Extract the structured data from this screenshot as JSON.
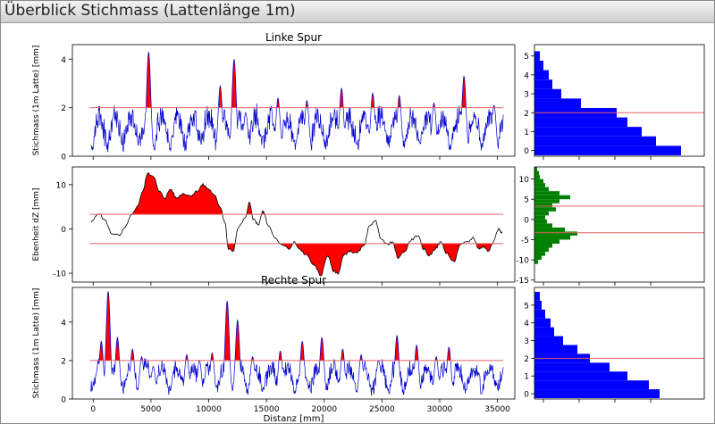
{
  "window": {
    "title": "Überblick Stichmass (Lattenlänge 1m)"
  },
  "chart_data": [
    {
      "id": "left",
      "type": "line",
      "title": "Linke Spur",
      "xlabel": "",
      "ylabel": "Stichmass (1m Latte) [mm]",
      "xlim": [
        -1800,
        36500
      ],
      "ylim": [
        0,
        4.6
      ],
      "xticks": [
        0,
        5000,
        10000,
        15000,
        20000,
        25000,
        30000,
        35000
      ],
      "yticks": [
        0,
        2,
        4
      ],
      "threshold": 2,
      "line_color": "#0000cc",
      "fill_color": "#ff0000",
      "threshold_color": "#e06060",
      "peaks": [
        [
          4800,
          4.3
        ],
        [
          6100,
          1.3
        ],
        [
          11000,
          2.9
        ],
        [
          12200,
          4.0
        ],
        [
          13200,
          1.8
        ],
        [
          16000,
          2.4
        ],
        [
          18500,
          2.3
        ],
        [
          21500,
          2.8
        ],
        [
          24200,
          2.6
        ],
        [
          26500,
          2.5
        ],
        [
          29500,
          2.2
        ],
        [
          32100,
          3.3
        ],
        [
          34700,
          2.1
        ]
      ],
      "y_hist": {
        "bins": [
          5,
          4.5,
          4,
          3.5,
          3,
          2.5,
          2,
          1.5,
          1,
          0.5,
          0
        ],
        "counts": [
          0.3,
          0.5,
          0.8,
          1.0,
          1.5,
          2.6,
          4.6,
          5.2,
          6.0,
          6.8,
          8.2
        ],
        "yticks": [
          0,
          1,
          2,
          3,
          4,
          5
        ],
        "ylim": [
          -0.3,
          5.6
        ],
        "threshold": 2,
        "color": "#0000ff"
      }
    },
    {
      "id": "mid",
      "type": "line",
      "title": "",
      "xlabel": "",
      "ylabel": "Ebenheit dZ [mm]",
      "xlim": [
        -1800,
        36500
      ],
      "ylim": [
        -12,
        14
      ],
      "xticks": [
        0,
        5000,
        10000,
        15000,
        20000,
        25000,
        30000,
        35000
      ],
      "yticks": [
        -10,
        0,
        10
      ],
      "threshold_upper": 3.3,
      "threshold_lower": -3.3,
      "line_color": "#000000",
      "fill_color": "#ff0000",
      "threshold_color": "#e06060",
      "profile": [
        [
          -200,
          1.5
        ],
        [
          500,
          3.5
        ],
        [
          1000,
          2.0
        ],
        [
          1600,
          -1.0
        ],
        [
          2300,
          -1.5
        ],
        [
          2800,
          0.5
        ],
        [
          3300,
          3.0
        ],
        [
          3800,
          5.0
        ],
        [
          4300,
          8.5
        ],
        [
          4700,
          12.5
        ],
        [
          5200,
          12.0
        ],
        [
          5700,
          8.5
        ],
        [
          6200,
          7.0
        ],
        [
          6700,
          9.0
        ],
        [
          7200,
          7.0
        ],
        [
          7800,
          8.0
        ],
        [
          8400,
          7.5
        ],
        [
          9000,
          8.5
        ],
        [
          9500,
          10.0
        ],
        [
          10000,
          9.0
        ],
        [
          10500,
          7.5
        ],
        [
          11000,
          5.0
        ],
        [
          11400,
          1.5
        ],
        [
          11700,
          -4.5
        ],
        [
          12100,
          -5.0
        ],
        [
          12600,
          0.5
        ],
        [
          13200,
          2.5
        ],
        [
          13500,
          6.0
        ],
        [
          13900,
          2.0
        ],
        [
          14300,
          1.0
        ],
        [
          14700,
          4.0
        ],
        [
          15200,
          0.5
        ],
        [
          15700,
          -2.0
        ],
        [
          16300,
          -3.5
        ],
        [
          17000,
          -4.5
        ],
        [
          17400,
          -3.0
        ],
        [
          17800,
          -4.5
        ],
        [
          18500,
          -6.0
        ],
        [
          19200,
          -8.5
        ],
        [
          19700,
          -10.5
        ],
        [
          20300,
          -6.0
        ],
        [
          20800,
          -9.5
        ],
        [
          21200,
          -10.0
        ],
        [
          21700,
          -6.0
        ],
        [
          22200,
          -5.0
        ],
        [
          22800,
          -5.5
        ],
        [
          23400,
          -4.0
        ],
        [
          23900,
          0.5
        ],
        [
          24400,
          2.0
        ],
        [
          24900,
          -2.0
        ],
        [
          25400,
          -3.5
        ],
        [
          25900,
          -3.0
        ],
        [
          26400,
          -6.5
        ],
        [
          27000,
          -5.0
        ],
        [
          27500,
          -2.5
        ],
        [
          28100,
          -1.5
        ],
        [
          28600,
          -4.5
        ],
        [
          29100,
          -6.0
        ],
        [
          29600,
          -4.5
        ],
        [
          30100,
          -3.0
        ],
        [
          30600,
          -5.5
        ],
        [
          31200,
          -7.5
        ],
        [
          31800,
          -3.5
        ],
        [
          32400,
          -3.0
        ],
        [
          32900,
          -2.0
        ],
        [
          33400,
          -4.5
        ],
        [
          33800,
          -4.0
        ],
        [
          34200,
          -5.0
        ],
        [
          34600,
          -3.0
        ],
        [
          35100,
          0.0
        ],
        [
          35400,
          -1.0
        ]
      ],
      "y_hist": {
        "bins": [
          12.5,
          11.5,
          10.5,
          9.5,
          8.5,
          7.5,
          6.5,
          5.5,
          4.5,
          3.5,
          2.5,
          1.5,
          0.5,
          -0.5,
          -1.5,
          -2.5,
          -3.5,
          -4.5,
          -5.5,
          -6.5,
          -7.5,
          -8.5,
          -9.5,
          -10.5
        ],
        "counts": [
          0.15,
          0.25,
          0.3,
          0.5,
          0.6,
          0.8,
          1.4,
          2.0,
          1.4,
          1.0,
          1.2,
          0.8,
          0.6,
          0.7,
          1.0,
          1.7,
          2.4,
          2.0,
          1.4,
          1.0,
          0.8,
          0.6,
          0.4,
          0.2
        ],
        "yticks": [
          -15,
          -10,
          -5,
          0,
          5,
          10
        ],
        "ylim": [
          -15.5,
          13
        ],
        "threshold_upper": 3.3,
        "threshold_lower": -3.3,
        "color": "#008000"
      }
    },
    {
      "id": "right",
      "type": "line",
      "title": "Rechte Spur",
      "xlabel": "Distanz [mm]",
      "ylabel": "Stichmass (1m Latte) [mm]",
      "xlim": [
        -1800,
        36500
      ],
      "ylim": [
        0,
        5.8
      ],
      "xticks": [
        0,
        5000,
        10000,
        15000,
        20000,
        25000,
        30000,
        35000
      ],
      "yticks": [
        0,
        2,
        4
      ],
      "threshold": 2,
      "line_color": "#0000cc",
      "fill_color": "#ff0000",
      "threshold_color": "#e06060",
      "peaks": [
        [
          700,
          3.0
        ],
        [
          1300,
          5.6
        ],
        [
          2100,
          3.2
        ],
        [
          3400,
          2.6
        ],
        [
          4200,
          2.2
        ],
        [
          5200,
          1.7
        ],
        [
          8100,
          2.3
        ],
        [
          9200,
          2.0
        ],
        [
          10300,
          2.4
        ],
        [
          11600,
          5.1
        ],
        [
          12500,
          4.1
        ],
        [
          13800,
          2.2
        ],
        [
          16200,
          2.5
        ],
        [
          18100,
          3.0
        ],
        [
          19800,
          3.2
        ],
        [
          21600,
          2.6
        ],
        [
          23200,
          2.3
        ],
        [
          24700,
          2.0
        ],
        [
          26300,
          3.3
        ],
        [
          28000,
          2.8
        ],
        [
          29700,
          2.2
        ],
        [
          30800,
          2.7
        ]
      ],
      "y_hist": {
        "bins": [
          5.5,
          5,
          4.5,
          4,
          3.5,
          3,
          2.5,
          2,
          1.5,
          1,
          0.5,
          0
        ],
        "counts": [
          0.3,
          0.4,
          0.6,
          0.9,
          1.1,
          1.6,
          2.4,
          3.1,
          4.2,
          5.2,
          6.4,
          7.0
        ],
        "yticks": [
          0,
          1,
          2,
          3,
          4,
          5
        ],
        "ylim": [
          -0.3,
          6.0
        ],
        "threshold": 2,
        "color": "#0000ff"
      }
    }
  ]
}
